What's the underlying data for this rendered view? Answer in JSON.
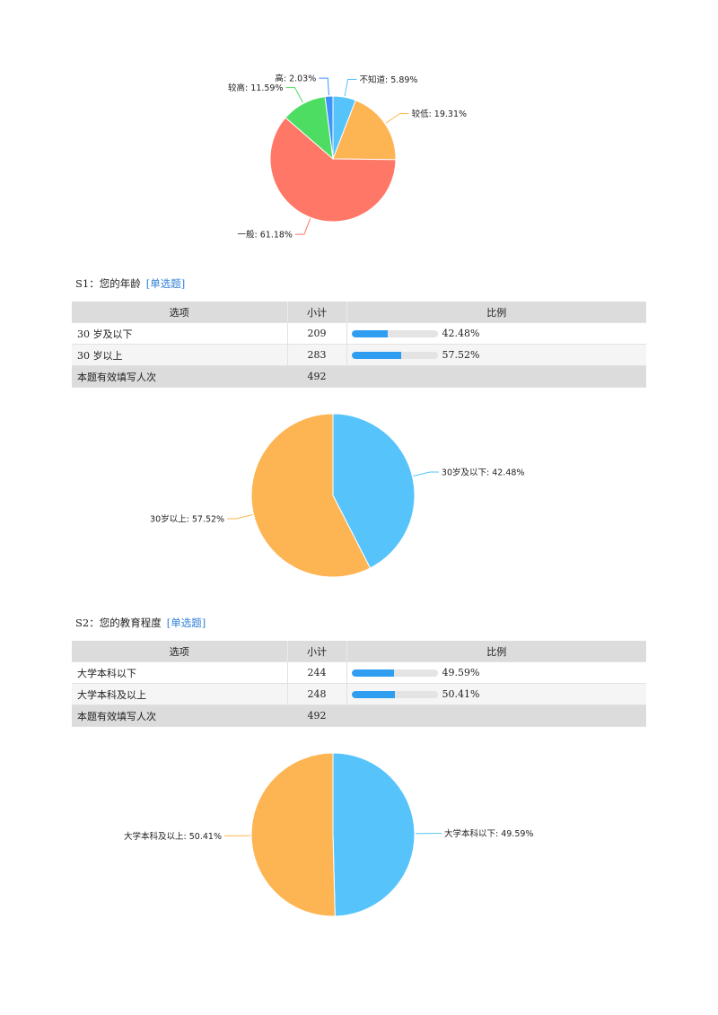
{
  "charts": [
    {
      "chart_data": {
        "type": "pie",
        "slices": [
          {
            "label": "不知道",
            "value": 5.89,
            "display": "不知道: 5.89%",
            "color": "#56c4fb"
          },
          {
            "label": "较低",
            "value": 19.31,
            "display": "较低: 19.31%",
            "color": "#fdb453"
          },
          {
            "label": "一般",
            "value": 61.18,
            "display": "一般: 61.18%",
            "color": "#ff7766"
          },
          {
            "label": "较高",
            "value": 11.59,
            "display": "较高: 11.59%",
            "color": "#4ddd63"
          },
          {
            "label": "高",
            "value": 2.03,
            "display": "高: 2.03%",
            "color": "#3d93f7"
          }
        ]
      }
    },
    {
      "chart_data": {
        "type": "pie",
        "slices": [
          {
            "label": "30岁及以下",
            "value": 42.48,
            "display": "30岁及以下: 42.48%",
            "color": "#56c4fb"
          },
          {
            "label": "30岁以上",
            "value": 57.52,
            "display": "30岁以上: 57.52%",
            "color": "#fdb453"
          }
        ]
      }
    },
    {
      "chart_data": {
        "type": "pie",
        "slices": [
          {
            "label": "大学本科以下",
            "value": 49.59,
            "display": "大学本科以下: 49.59%",
            "color": "#56c4fb"
          },
          {
            "label": "大学本科及以上",
            "value": 50.41,
            "display": "大学本科及以上: 50.41%",
            "color": "#fdb453"
          }
        ]
      }
    }
  ],
  "questions": [
    {
      "title": "S1：您的年龄",
      "type": "[单选题]",
      "headers": {
        "option": "选项",
        "count": "小计",
        "ratio": "比例"
      },
      "rows": [
        {
          "option": "30 岁及以下",
          "count": "209",
          "percent": "42.48%",
          "fraction": 0.4248
        },
        {
          "option": "30 岁以上",
          "count": "283",
          "percent": "57.52%",
          "fraction": 0.5752
        }
      ],
      "total_label": "本题有效填写人次",
      "total": "492"
    },
    {
      "title": "S2：您的教育程度",
      "type": "[单选题]",
      "headers": {
        "option": "选项",
        "count": "小计",
        "ratio": "比例"
      },
      "rows": [
        {
          "option": "大学本科以下",
          "count": "244",
          "percent": "49.59%",
          "fraction": 0.4959
        },
        {
          "option": "大学本科及以上",
          "count": "248",
          "percent": "50.41%",
          "fraction": 0.5041
        }
      ],
      "total_label": "本题有效填写人次",
      "total": "492"
    }
  ],
  "colors": {
    "bar": "#2f9df0",
    "question_type": "#2f7fd6",
    "header_bg": "#dcdcdc"
  }
}
